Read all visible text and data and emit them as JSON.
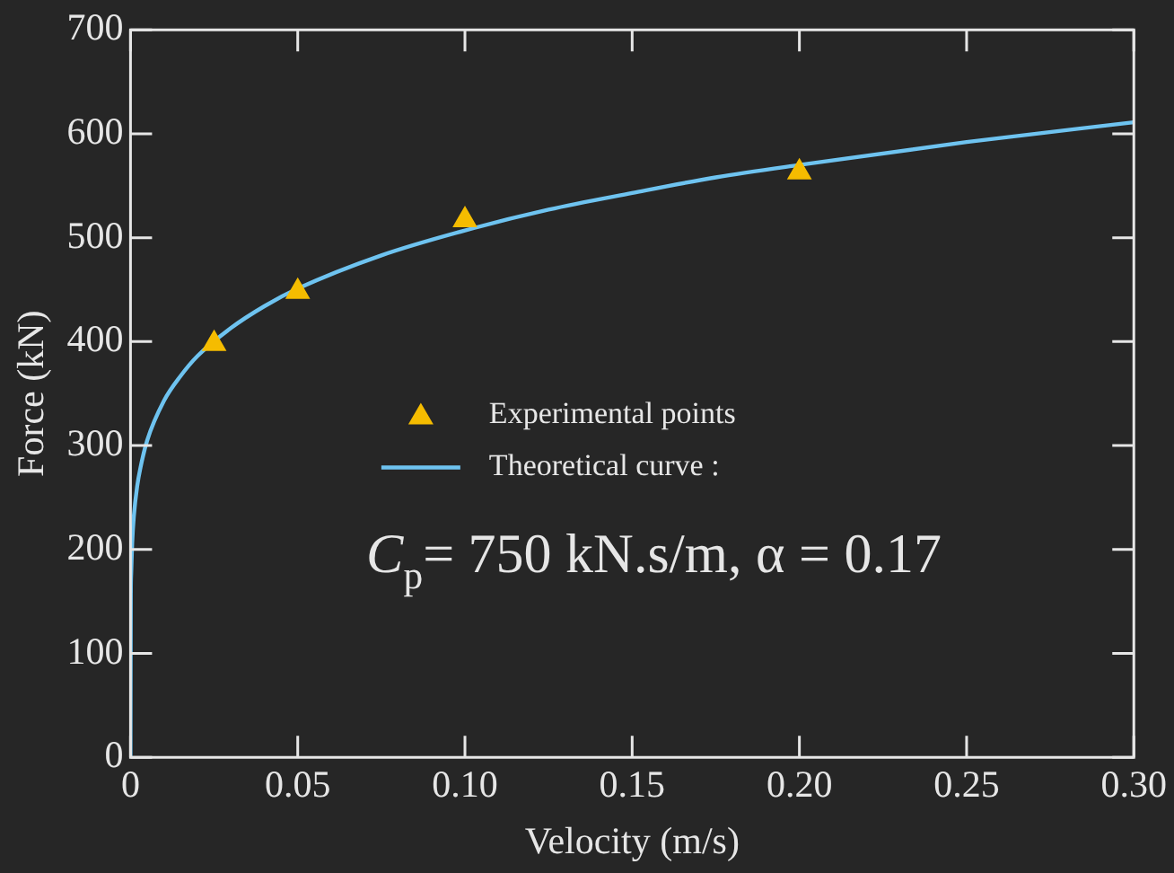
{
  "chart_data": {
    "type": "scatter",
    "xlabel": "Velocity (m/s)",
    "ylabel": "Force (kN)",
    "xlim": [
      0,
      0.3
    ],
    "xticks": [
      0,
      {
        "value": 0.05,
        "label": "0.05"
      },
      {
        "value": 0.1,
        "label": "0.10"
      },
      {
        "value": 0.15,
        "label": "0.15"
      },
      {
        "value": 0.2,
        "label": "0.20"
      },
      {
        "value": 0.25,
        "label": "0.25"
      },
      {
        "value": 0.3,
        "label": "0.30"
      }
    ],
    "ylim": [
      0,
      700
    ],
    "yticks": [
      0,
      100,
      200,
      300,
      400,
      500,
      600,
      700
    ],
    "grid": false,
    "legend": "center",
    "marker": "triangle",
    "series": [
      {
        "name": "Experimental points",
        "type": "scatter",
        "color": "#f5bc00",
        "x": [
          0.025,
          0.05,
          0.1,
          0.2
        ],
        "values": [
          398,
          448,
          517,
          563
        ]
      },
      {
        "name": "Theoretical curve :",
        "type": "line",
        "marker": "none",
        "color": "#6ec3f0",
        "x": [
          0,
          0.0001,
          0.0002,
          0.0005,
          0.001,
          0.002,
          0.003,
          0.005,
          0.01,
          0.015,
          0.02,
          0.03,
          0.04,
          0.05,
          0.075,
          0.1,
          0.125,
          0.15,
          0.175,
          0.2,
          0.25,
          0.3
        ],
        "values": [
          0,
          157,
          176,
          206,
          232,
          261,
          279,
          305,
          343,
          367,
          386,
          413,
          434,
          451,
          483,
          507,
          527,
          543,
          558,
          570,
          592,
          611
        ]
      }
    ],
    "annotations": [
      "C$_{p}$= 750 kN.s/m, α = 0.17"
    ]
  }
}
